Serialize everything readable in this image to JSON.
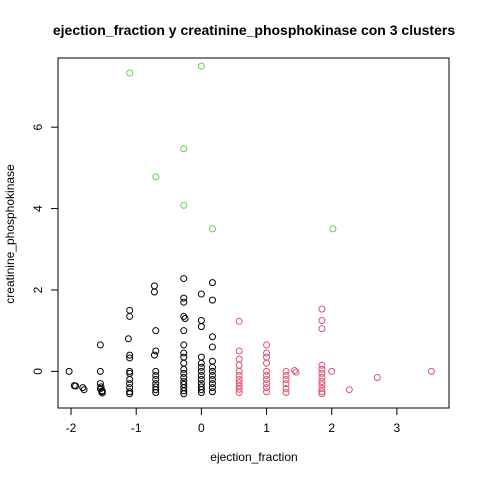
{
  "chart_data": {
    "type": "scatter",
    "title": "ejection_fraction  y  creatinine_phosphokinase con  3  clusters",
    "xlabel": "ejection_fraction",
    "ylabel": "creatinine_phosphokinase",
    "xlim": [
      -2.2,
      3.8
    ],
    "ylim": [
      -0.9,
      7.7
    ],
    "xticks": [
      -2,
      -1,
      0,
      1,
      2,
      3
    ],
    "yticks": [
      0,
      2,
      4,
      6
    ],
    "grid": false,
    "legend": "none",
    "series": [
      {
        "color": "#000000",
        "points": [
          [
            -2.03,
            0.0
          ],
          [
            -1.95,
            -0.35
          ],
          [
            -1.93,
            -0.36
          ],
          [
            -1.82,
            -0.4
          ],
          [
            -1.8,
            -0.45
          ],
          [
            -1.55,
            0.65
          ],
          [
            -1.55,
            0.0
          ],
          [
            -1.55,
            -0.3
          ],
          [
            -1.55,
            -0.42
          ],
          [
            -1.53,
            -0.5
          ],
          [
            -1.52,
            -0.53
          ],
          [
            -1.52,
            -0.48
          ],
          [
            -1.54,
            -0.38
          ],
          [
            -1.1,
            1.5
          ],
          [
            -1.1,
            1.35
          ],
          [
            -1.12,
            0.8
          ],
          [
            -1.1,
            0.4
          ],
          [
            -1.1,
            0.33
          ],
          [
            -1.1,
            0.0
          ],
          [
            -1.1,
            -0.05
          ],
          [
            -1.1,
            -0.2
          ],
          [
            -1.1,
            -0.3
          ],
          [
            -1.1,
            -0.4
          ],
          [
            -1.1,
            -0.5
          ],
          [
            -1.1,
            -0.55
          ],
          [
            -0.72,
            2.1
          ],
          [
            -0.72,
            1.95
          ],
          [
            -0.7,
            1.0
          ],
          [
            -0.7,
            0.5
          ],
          [
            -0.72,
            0.4
          ],
          [
            -0.7,
            0.0
          ],
          [
            -0.7,
            -0.1
          ],
          [
            -0.7,
            -0.2
          ],
          [
            -0.7,
            -0.3
          ],
          [
            -0.7,
            -0.38
          ],
          [
            -0.7,
            -0.45
          ],
          [
            -0.7,
            -0.52
          ],
          [
            -0.27,
            2.28
          ],
          [
            -0.27,
            1.8
          ],
          [
            -0.27,
            1.7
          ],
          [
            -0.27,
            1.35
          ],
          [
            -0.25,
            1.3
          ],
          [
            -0.27,
            1.0
          ],
          [
            -0.27,
            0.65
          ],
          [
            -0.27,
            0.45
          ],
          [
            -0.27,
            0.35
          ],
          [
            -0.27,
            0.2
          ],
          [
            -0.27,
            0.05
          ],
          [
            -0.27,
            -0.05
          ],
          [
            -0.27,
            -0.15
          ],
          [
            -0.27,
            -0.25
          ],
          [
            -0.27,
            -0.32
          ],
          [
            -0.27,
            -0.4
          ],
          [
            -0.27,
            -0.48
          ],
          [
            -0.27,
            -0.55
          ],
          [
            0.0,
            1.9
          ],
          [
            0.0,
            1.25
          ],
          [
            0.0,
            1.1
          ],
          [
            0.0,
            0.35
          ],
          [
            0.0,
            0.2
          ],
          [
            0.0,
            0.1
          ],
          [
            0.0,
            0.0
          ],
          [
            0.0,
            -0.1
          ],
          [
            0.0,
            -0.2
          ],
          [
            0.0,
            -0.3
          ],
          [
            0.0,
            -0.38
          ],
          [
            0.0,
            -0.45
          ],
          [
            0.0,
            -0.52
          ],
          [
            0.17,
            2.18
          ],
          [
            0.17,
            1.75
          ],
          [
            0.17,
            0.85
          ],
          [
            0.17,
            0.6
          ],
          [
            0.17,
            0.25
          ],
          [
            0.17,
            0.1
          ],
          [
            0.17,
            0.0
          ],
          [
            0.17,
            -0.1
          ],
          [
            0.17,
            -0.2
          ],
          [
            0.17,
            -0.3
          ],
          [
            0.17,
            -0.4
          ],
          [
            0.17,
            -0.5
          ]
        ]
      },
      {
        "color": "#DF536B",
        "points": [
          [
            0.58,
            1.23
          ],
          [
            0.58,
            0.5
          ],
          [
            0.58,
            0.3
          ],
          [
            0.58,
            0.15
          ],
          [
            0.58,
            0.0
          ],
          [
            0.58,
            -0.1
          ],
          [
            0.58,
            -0.2
          ],
          [
            0.58,
            -0.28
          ],
          [
            0.58,
            -0.36
          ],
          [
            0.58,
            -0.44
          ],
          [
            0.58,
            -0.52
          ],
          [
            1.0,
            0.65
          ],
          [
            1.0,
            0.45
          ],
          [
            1.0,
            0.35
          ],
          [
            1.0,
            0.2
          ],
          [
            1.0,
            0.0
          ],
          [
            1.0,
            -0.1
          ],
          [
            1.0,
            -0.2
          ],
          [
            1.0,
            -0.3
          ],
          [
            1.0,
            -0.4
          ],
          [
            1.0,
            -0.5
          ],
          [
            1.3,
            0.0
          ],
          [
            1.3,
            -0.1
          ],
          [
            1.3,
            -0.2
          ],
          [
            1.3,
            -0.3
          ],
          [
            1.3,
            -0.42
          ],
          [
            1.3,
            -0.52
          ],
          [
            1.43,
            0.02
          ],
          [
            1.45,
            -0.02
          ],
          [
            1.85,
            1.53
          ],
          [
            1.85,
            1.25
          ],
          [
            1.85,
            1.05
          ],
          [
            1.85,
            0.15
          ],
          [
            1.85,
            0.05
          ],
          [
            1.85,
            -0.05
          ],
          [
            1.85,
            -0.15
          ],
          [
            1.85,
            -0.25
          ],
          [
            1.85,
            -0.33
          ],
          [
            1.85,
            -0.42
          ],
          [
            1.85,
            -0.5
          ],
          [
            1.85,
            -0.55
          ],
          [
            2.0,
            0.0
          ],
          [
            2.27,
            -0.45
          ],
          [
            2.7,
            -0.15
          ],
          [
            3.53,
            0.0
          ]
        ]
      },
      {
        "color": "#61D04F",
        "points": [
          [
            -1.1,
            7.33
          ],
          [
            0.0,
            7.5
          ],
          [
            -0.27,
            5.47
          ],
          [
            -0.7,
            4.78
          ],
          [
            -0.27,
            4.08
          ],
          [
            0.17,
            3.5
          ],
          [
            2.02,
            3.5
          ]
        ]
      }
    ]
  }
}
